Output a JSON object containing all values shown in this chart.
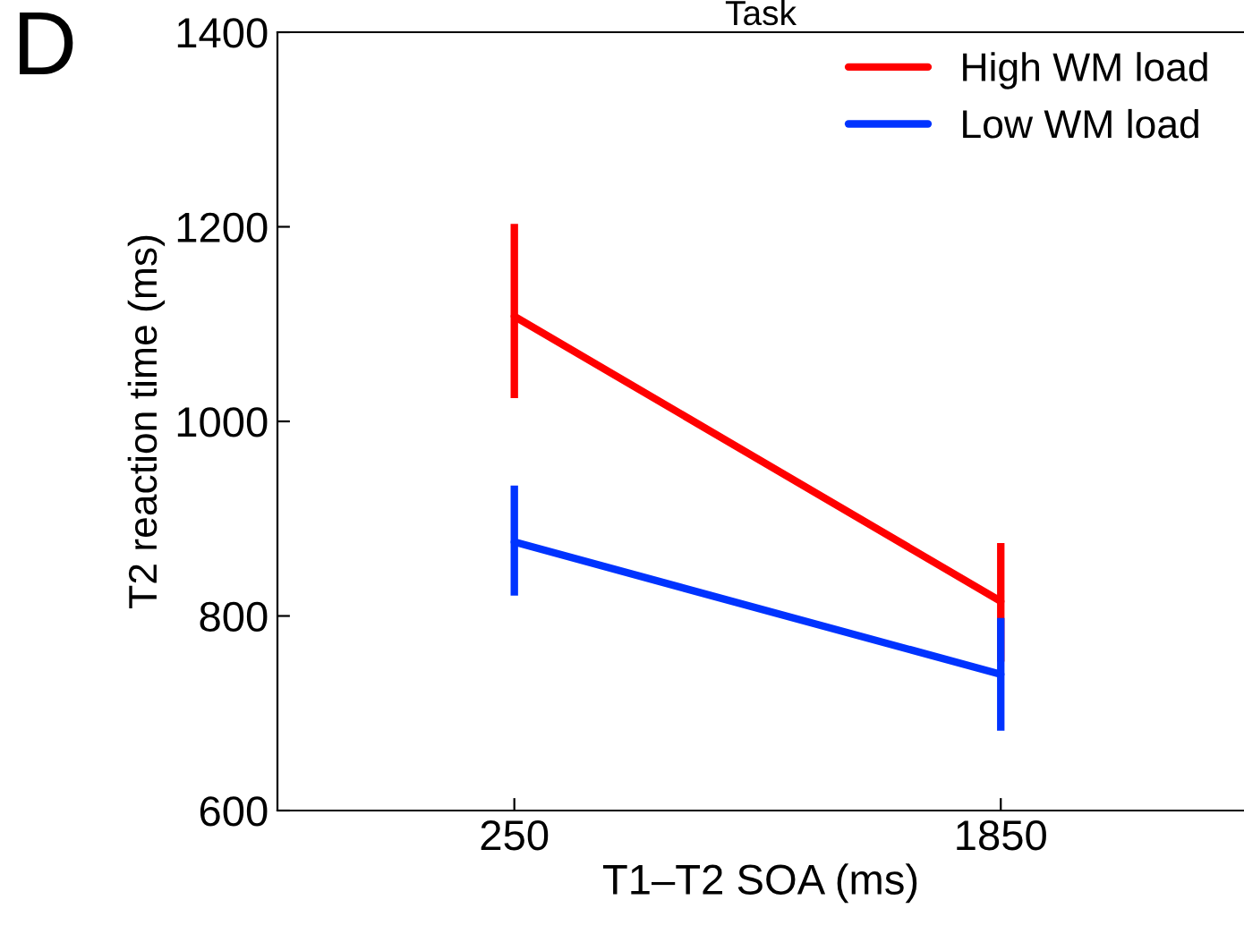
{
  "chart_data": {
    "type": "line",
    "title": "Task",
    "xlabel": "T1–T2 SOA (ms)",
    "ylabel": "T2 reaction time (ms)",
    "annotations": [
      "D"
    ],
    "categories": [
      "250",
      "1850"
    ],
    "series": [
      {
        "name": "High WM load",
        "color": "#ff0000",
        "values": [
          1108,
          815
        ],
        "errors": [
          [
            1024,
            1203
          ],
          [
            753,
            875
          ]
        ]
      },
      {
        "name": "Low WM load",
        "color": "#0033ff",
        "values": [
          876,
          740
        ],
        "errors": [
          [
            821,
            934
          ],
          [
            682,
            798
          ]
        ]
      }
    ],
    "ylim": [
      600,
      1400
    ],
    "yticks": [
      600,
      800,
      1000,
      1200,
      1400
    ],
    "grid": false,
    "legend": "top right",
    "marker": "none",
    "line_style": "solid"
  }
}
